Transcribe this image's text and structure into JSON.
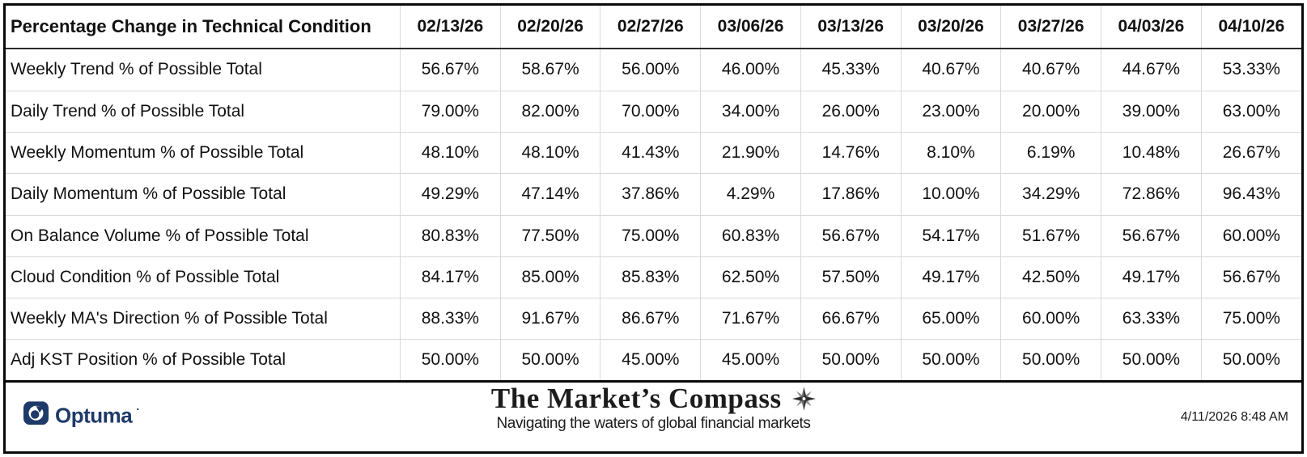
{
  "chart_data": {
    "type": "table",
    "title": "Percentage Change in Technical Condition",
    "columns": [
      "02/13/26",
      "02/20/26",
      "02/27/26",
      "03/06/26",
      "03/13/26",
      "03/20/26",
      "03/27/26",
      "04/03/26",
      "04/10/26"
    ],
    "rows": [
      {
        "label": "Weekly Trend % of Possible Total",
        "values": [
          "56.67%",
          "58.67%",
          "56.00%",
          "46.00%",
          "45.33%",
          "40.67%",
          "40.67%",
          "44.67%",
          "53.33%"
        ]
      },
      {
        "label": "Daily Trend % of Possible Total",
        "values": [
          "79.00%",
          "82.00%",
          "70.00%",
          "34.00%",
          "26.00%",
          "23.00%",
          "20.00%",
          "39.00%",
          "63.00%"
        ]
      },
      {
        "label": "Weekly Momentum % of Possible Total",
        "values": [
          "48.10%",
          "48.10%",
          "41.43%",
          "21.90%",
          "14.76%",
          "8.10%",
          "6.19%",
          "10.48%",
          "26.67%"
        ]
      },
      {
        "label": "Daily Momentum % of Possible Total",
        "values": [
          "49.29%",
          "47.14%",
          "37.86%",
          "4.29%",
          "17.86%",
          "10.00%",
          "34.29%",
          "72.86%",
          "96.43%"
        ]
      },
      {
        "label": "On Balance Volume % of Possible Total",
        "values": [
          "80.83%",
          "77.50%",
          "75.00%",
          "60.83%",
          "56.67%",
          "54.17%",
          "51.67%",
          "56.67%",
          "60.00%"
        ]
      },
      {
        "label": "Cloud Condition % of Possible Total",
        "values": [
          "84.17%",
          "85.00%",
          "85.83%",
          "62.50%",
          "57.50%",
          "49.17%",
          "42.50%",
          "49.17%",
          "56.67%"
        ]
      },
      {
        "label": "Weekly MA's Direction % of Possible Total",
        "values": [
          "88.33%",
          "91.67%",
          "86.67%",
          "71.67%",
          "66.67%",
          "65.00%",
          "60.00%",
          "63.33%",
          "75.00%"
        ]
      },
      {
        "label": "Adj KST Position % of Possible Total",
        "values": [
          "50.00%",
          "50.00%",
          "45.00%",
          "45.00%",
          "50.00%",
          "50.00%",
          "50.00%",
          "50.00%",
          " 50.00%"
        ]
      }
    ]
  },
  "footer": {
    "optuma_label": "Optuma",
    "optuma_mark": "·",
    "brand_title": "The Market’s Compass",
    "brand_tagline": "Navigating the waters of global financial markets",
    "timestamp": "4/11/2026 8:48 AM"
  },
  "colors": {
    "optuma_navy": "#1e3a68",
    "grid_line": "#d9d9d9",
    "frame_border": "#0a0a0a"
  }
}
